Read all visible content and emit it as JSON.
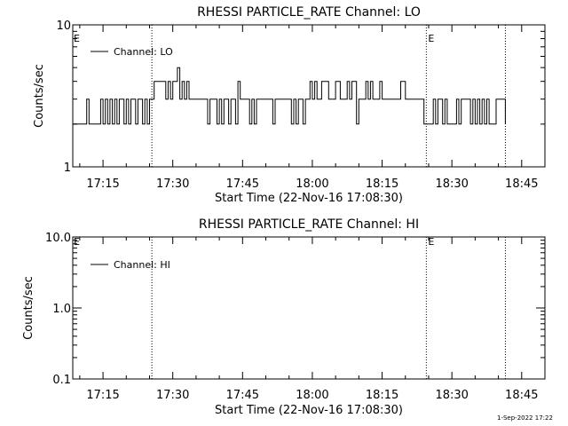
{
  "footer_timestamp": "1-Sep-2022 17:22",
  "chart_data": [
    {
      "type": "line",
      "title": "RHESSI PARTICLE_RATE Channel: LO",
      "xlabel": "Start Time (22-Nov-16 17:08:30)",
      "ylabel": "Counts/sec",
      "y_scale": "log",
      "ylim": [
        1,
        10
      ],
      "y_ticks": [
        {
          "v": 1,
          "label": "1"
        },
        {
          "v": 10,
          "label": "10"
        }
      ],
      "xlim": [
        "17:08:30",
        "18:50:00"
      ],
      "x_ticks": [
        "17:15",
        "17:30",
        "17:45",
        "18:00",
        "18:15",
        "18:30",
        "18:45"
      ],
      "grid": false,
      "legend": {
        "position": "top-left",
        "entries": [
          "Channel: LO"
        ]
      },
      "markers": [
        {
          "time": "17:25:30",
          "label": ""
        },
        {
          "time": "18:24:30",
          "label": "E"
        },
        {
          "time": "18:41:30",
          "label": ""
        }
      ],
      "corner_label": "E",
      "series": [
        {
          "name": "Channel: LO",
          "x": [
            "17:08:30",
            "17:11:00",
            "17:11:30",
            "17:12:00",
            "17:14:00",
            "17:14:30",
            "17:15:00",
            "17:15:30",
            "17:16:00",
            "17:16:30",
            "17:17:00",
            "17:17:30",
            "17:18:00",
            "17:18:30",
            "17:19:00",
            "17:19:30",
            "17:20:00",
            "17:20:30",
            "17:21:00",
            "17:21:30",
            "17:22:00",
            "17:22:30",
            "17:23:00",
            "17:23:30",
            "17:24:00",
            "17:24:30",
            "17:25:00",
            "17:25:30",
            "17:26:00",
            "17:26:30",
            "17:28:00",
            "17:28:30",
            "17:29:00",
            "17:29:30",
            "17:30:00",
            "17:30:30",
            "17:31:00",
            "17:31:30",
            "17:32:00",
            "17:32:30",
            "17:33:00",
            "17:33:30",
            "17:34:00",
            "17:35:00",
            "17:36:00",
            "17:37:00",
            "17:37:30",
            "17:38:00",
            "17:39:00",
            "17:39:30",
            "17:40:00",
            "17:40:30",
            "17:41:00",
            "17:41:30",
            "17:42:00",
            "17:42:30",
            "17:43:00",
            "17:43:30",
            "17:44:00",
            "17:44:30",
            "17:45:00",
            "17:46:00",
            "17:46:30",
            "17:47:00",
            "17:47:30",
            "17:48:00",
            "17:48:30",
            "17:49:00",
            "17:50:00",
            "17:51:00",
            "17:51:30",
            "17:52:00",
            "17:53:00",
            "17:54:00",
            "17:55:00",
            "17:55:30",
            "17:56:00",
            "17:56:30",
            "17:57:00",
            "17:57:30",
            "17:58:00",
            "17:58:30",
            "17:59:00",
            "17:59:30",
            "18:00:00",
            "18:00:30",
            "18:01:00",
            "18:01:30",
            "18:02:00",
            "18:03:00",
            "18:03:30",
            "18:04:00",
            "18:05:00",
            "18:05:30",
            "18:06:00",
            "18:07:00",
            "18:07:30",
            "18:08:00",
            "18:08:30",
            "18:09:00",
            "18:09:30",
            "18:10:00",
            "18:11:00",
            "18:11:30",
            "18:12:00",
            "18:12:30",
            "18:13:00",
            "18:14:00",
            "18:14:30",
            "18:15:00",
            "18:16:00",
            "18:16:30",
            "18:17:00",
            "18:18:00",
            "18:19:00",
            "18:20:00",
            "18:20:30",
            "18:21:00",
            "18:22:00",
            "18:23:00",
            "18:24:00",
            "18:24:30",
            "18:25:00",
            "18:26:00",
            "18:26:30",
            "18:27:00",
            "18:27:30",
            "18:28:00",
            "18:28:30",
            "18:29:00",
            "18:29:30",
            "18:30:00",
            "18:31:00",
            "18:31:30",
            "18:32:00",
            "18:32:30",
            "18:33:00",
            "18:34:00",
            "18:34:30",
            "18:35:00",
            "18:35:30",
            "18:36:00",
            "18:36:30",
            "18:37:00",
            "18:37:30",
            "18:38:00",
            "18:39:00",
            "18:39:30",
            "18:40:00",
            "18:41:30"
          ],
          "y": [
            2,
            2,
            3,
            2,
            2,
            3,
            2,
            3,
            2,
            3,
            2,
            3,
            2,
            3,
            3,
            2,
            3,
            2,
            3,
            3,
            2,
            3,
            3,
            2,
            3,
            2,
            3,
            3,
            4,
            4,
            4,
            3,
            4,
            3,
            4,
            4,
            5,
            3,
            4,
            3,
            4,
            3,
            3,
            3,
            3,
            3,
            2,
            3,
            3,
            2,
            3,
            2,
            3,
            3,
            2,
            3,
            3,
            2,
            4,
            3,
            3,
            3,
            2,
            3,
            2,
            3,
            3,
            3,
            3,
            3,
            2,
            3,
            3,
            3,
            3,
            2,
            3,
            2,
            3,
            3,
            2,
            3,
            3,
            4,
            3,
            4,
            3,
            3,
            4,
            4,
            3,
            3,
            4,
            4,
            3,
            3,
            4,
            3,
            4,
            4,
            2,
            3,
            3,
            4,
            3,
            4,
            3,
            3,
            4,
            3,
            3,
            3,
            3,
            3,
            4,
            3,
            3,
            3,
            3,
            3,
            2,
            2,
            2,
            3,
            2,
            3,
            3,
            2,
            3,
            2,
            2,
            2,
            3,
            2,
            3,
            3,
            3,
            2,
            3,
            2,
            3,
            2,
            3,
            2,
            3,
            2,
            2,
            3,
            3,
            2
          ]
        }
      ]
    },
    {
      "type": "line",
      "title": "RHESSI PARTICLE_RATE Channel: HI",
      "xlabel": "Start Time (22-Nov-16 17:08:30)",
      "ylabel": "Counts/sec",
      "y_scale": "log",
      "ylim": [
        0.1,
        10
      ],
      "y_ticks": [
        {
          "v": 0.1,
          "label": "0.1"
        },
        {
          "v": 1,
          "label": "1.0"
        },
        {
          "v": 10,
          "label": "10.0"
        }
      ],
      "xlim": [
        "17:08:30",
        "18:50:00"
      ],
      "x_ticks": [
        "17:15",
        "17:30",
        "17:45",
        "18:00",
        "18:15",
        "18:30",
        "18:45"
      ],
      "grid": false,
      "legend": {
        "position": "top-left",
        "entries": [
          "Channel: HI"
        ]
      },
      "markers": [
        {
          "time": "17:25:30",
          "label": ""
        },
        {
          "time": "18:24:30",
          "label": "E"
        },
        {
          "time": "18:41:30",
          "label": ""
        }
      ],
      "corner_label": "E",
      "series": [
        {
          "name": "Channel: HI",
          "x": [],
          "y": []
        }
      ]
    }
  ]
}
